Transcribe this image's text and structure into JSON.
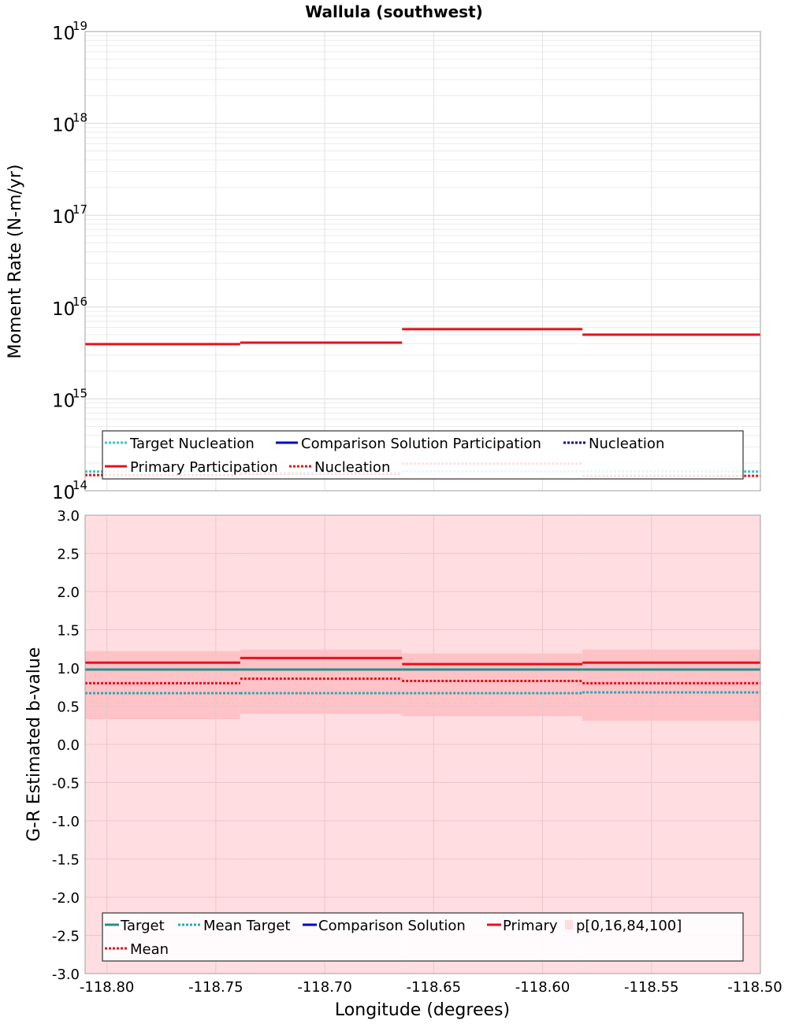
{
  "chart_data": [
    {
      "type": "line",
      "title": "Wallula (southwest)",
      "xlabel": "",
      "ylabel": "Moment Rate (N-m/yr)",
      "xlim": [
        -118.81,
        -118.5
      ],
      "ylim": [
        100000000000000.0,
        1e+19
      ],
      "yscale": "log",
      "y_ticks": [
        {
          "base": "10",
          "exp": "14",
          "value": 14
        },
        {
          "base": "10",
          "exp": "15",
          "value": 15
        },
        {
          "base": "10",
          "exp": "16",
          "value": 16
        },
        {
          "base": "10",
          "exp": "17",
          "value": 17
        },
        {
          "base": "10",
          "exp": "18",
          "value": 18
        },
        {
          "base": "10",
          "exp": "19",
          "value": 19
        }
      ],
      "grid": true,
      "bin_edges": [
        -118.81,
        -118.7388,
        -118.6645,
        -118.5817,
        -118.5
      ],
      "series": [
        {
          "name": "Target Nucleation",
          "style": "dotted",
          "color": "#40c4c4",
          "values": [
            162000000000000.0,
            158000000000000.0,
            163000000000000.0,
            162000000000000.0
          ]
        },
        {
          "name": "Comparison Solution Participation",
          "style": "solid",
          "color": "#0000cc",
          "values": [
            null,
            null,
            null,
            null
          ]
        },
        {
          "name": "Nucleation",
          "style": "dotted",
          "color": "#0000aa",
          "values": [
            null,
            null,
            null,
            null
          ]
        },
        {
          "name": "Primary Participation",
          "style": "solid",
          "color": "#e8101a",
          "values": [
            3950000000000000.0,
            4100000000000000.0,
            5750000000000000.0,
            5000000000000000.0
          ]
        },
        {
          "name": "Nucleation",
          "style": "dotted",
          "color": "#e8101a",
          "values": [
            148000000000000.0,
            152000000000000.0,
            197000000000000.0,
            145000000000000.0
          ]
        }
      ],
      "legend_placement": "bottom",
      "legend": {
        "row1": [
          "Target Nucleation",
          "Comparison Solution Participation",
          "Nucleation"
        ],
        "row2": [
          "Primary Participation",
          "Nucleation"
        ]
      }
    },
    {
      "type": "line",
      "title": "",
      "xlabel": "Longitude (degrees)",
      "ylabel": "G-R Estimated b-value",
      "xlim": [
        -118.81,
        -118.5
      ],
      "ylim": [
        -3.0,
        3.0
      ],
      "y_ticks": [
        "-3.0",
        "-2.5",
        "-2.0",
        "-1.5",
        "-1.0",
        "-0.5",
        "0.0",
        "0.5",
        "1.0",
        "1.5",
        "2.0",
        "2.5",
        "3.0"
      ],
      "x_ticks": [
        "-118.80",
        "-118.75",
        "-118.70",
        "-118.65",
        "-118.60",
        "-118.55",
        "-118.50"
      ],
      "grid": true,
      "bin_edges": [
        -118.81,
        -118.7388,
        -118.6645,
        -118.5817,
        -118.5
      ],
      "series": [
        {
          "name": "Target",
          "style": "solid",
          "color": "#2e8b8b",
          "values": [
            0.98,
            0.98,
            0.98,
            0.98
          ]
        },
        {
          "name": "Mean Target",
          "style": "dotted",
          "color": "#2aa8b8",
          "values": [
            0.67,
            0.67,
            0.67,
            0.68
          ]
        },
        {
          "name": "Comparison Solution",
          "style": "solid",
          "color": "#0000cc",
          "values": [
            null,
            null,
            null,
            null
          ]
        },
        {
          "name": "Primary",
          "style": "solid",
          "color": "#e8101a",
          "values": [
            1.07,
            1.13,
            1.05,
            1.07
          ]
        },
        {
          "name": "Mean",
          "style": "dotted",
          "color": "#e8101a",
          "values": [
            0.8,
            0.86,
            0.83,
            0.8
          ]
        }
      ],
      "percentile_band": {
        "name": "p[0,16,84,100]",
        "p0": [
          -3.0,
          -3.0,
          -3.0,
          -3.0
        ],
        "p100": [
          3.0,
          3.0,
          3.0,
          3.0
        ],
        "p16": [
          0.33,
          0.4,
          0.37,
          0.31
        ],
        "p84": [
          1.22,
          1.24,
          1.19,
          1.24
        ],
        "outer_color": "#ffdde0",
        "inner_color": "#ffc2c6"
      },
      "legend_placement": "bottom",
      "legend": {
        "row1": [
          "Target",
          "Mean Target",
          "Comparison Solution",
          "Primary",
          "p[0,16,84,100]"
        ],
        "row2": [
          "Mean"
        ]
      }
    }
  ]
}
